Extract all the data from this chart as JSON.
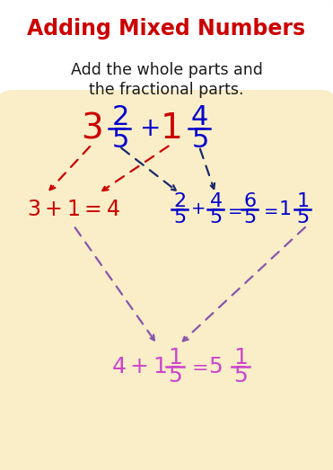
{
  "title": "Adding Mixed Numbers",
  "title_color": "#cc0000",
  "subtitle_line1": "Add the whole parts and",
  "subtitle_line2": "the fractional parts.",
  "subtitle_color": "#1a1a1a",
  "bg_color": "#ffffff",
  "box_color": "#faeec8",
  "box_edge_color": "#4da6d6",
  "red": "#cc0000",
  "blue": "#0000cc",
  "dark_navy": "#1a2a6a",
  "purple": "#8855aa",
  "magenta": "#cc44cc"
}
